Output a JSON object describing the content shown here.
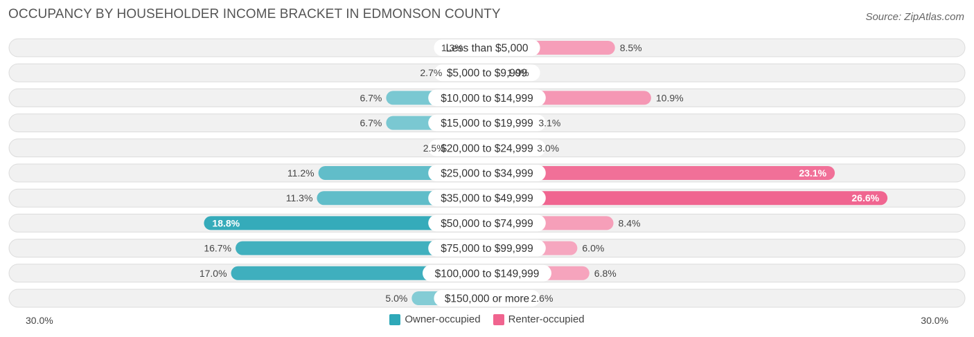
{
  "title": "OCCUPANCY BY HOUSEHOLDER INCOME BRACKET IN EDMONSON COUNTY",
  "source": "Source: ZipAtlas.com",
  "axis": {
    "left_label": "30.0%",
    "right_label": "30.0%"
  },
  "legend": {
    "owner": {
      "label": "Owner-occupied",
      "color": "#2ea8b8"
    },
    "renter": {
      "label": "Renter-occupied",
      "color": "#f0648f"
    }
  },
  "chart_data": {
    "type": "bar",
    "orientation": "horizontal-diverging",
    "title": "OCCUPANCY BY HOUSEHOLDER INCOME BRACKET IN EDMONSON COUNTY",
    "xlim": [
      -30,
      30
    ],
    "categories": [
      "Less than $5,000",
      "$5,000 to $9,999",
      "$10,000 to $14,999",
      "$15,000 to $19,999",
      "$20,000 to $24,999",
      "$25,000 to $34,999",
      "$35,000 to $49,999",
      "$50,000 to $74,999",
      "$75,000 to $99,999",
      "$100,000 to $149,999",
      "$150,000 or more"
    ],
    "series": [
      {
        "name": "Owner-occupied",
        "side": "left",
        "values": [
          1.3,
          2.7,
          6.7,
          6.7,
          2.5,
          11.2,
          11.3,
          18.8,
          16.7,
          17.0,
          5.0
        ]
      },
      {
        "name": "Renter-occupied",
        "side": "right",
        "values": [
          8.5,
          1.0,
          10.9,
          3.1,
          3.0,
          23.1,
          26.6,
          8.4,
          6.0,
          6.8,
          2.6
        ]
      }
    ]
  }
}
